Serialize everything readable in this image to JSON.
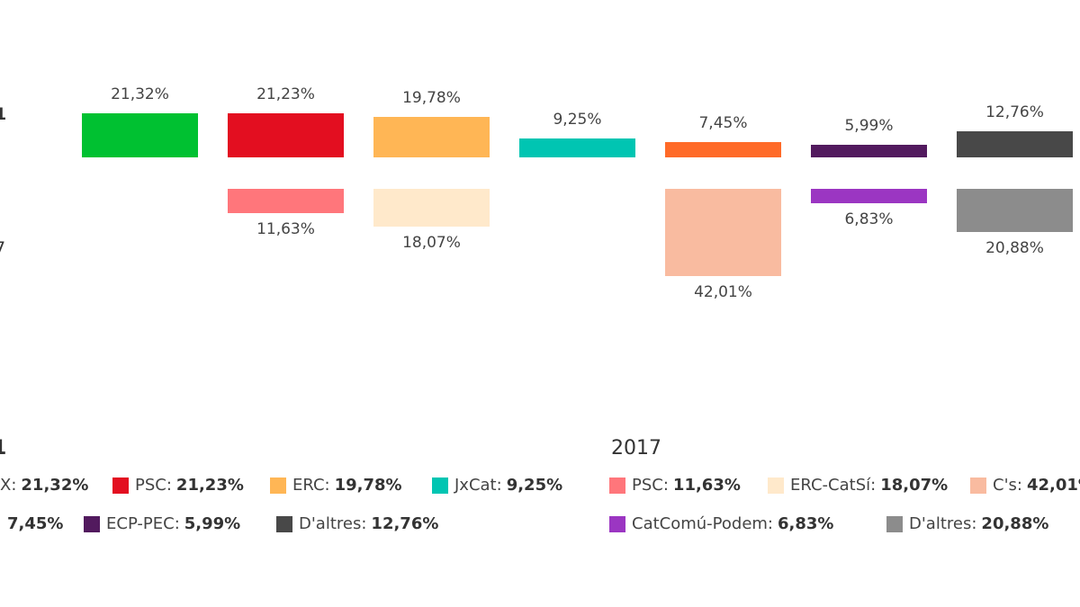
{
  "chart_data": {
    "type": "bar",
    "row_labels": [
      "1",
      "7"
    ],
    "series": [
      {
        "legend_title": "1",
        "bars": [
          {
            "label": "X",
            "value": 21.32,
            "text": "21,32%",
            "color": "#00c131"
          },
          {
            "label": "PSC",
            "value": 21.23,
            "text": "21,23%",
            "color": "#e30e20"
          },
          {
            "label": "ERC",
            "value": 19.78,
            "text": "19,78%",
            "color": "#ffb655"
          },
          {
            "label": "JxCat",
            "value": 9.25,
            "text": "9,25%",
            "color": "#00c5b2"
          },
          {
            "label": "",
            "value": 7.45,
            "text": "7,45%",
            "color": "#ff6a28"
          },
          {
            "label": "ECP-PEC",
            "value": 5.99,
            "text": "5,99%",
            "color": "#521a5e"
          },
          {
            "label": "D'altres",
            "value": 12.76,
            "text": "12,76%",
            "color": "#484848"
          }
        ]
      },
      {
        "legend_title": "2017",
        "bars": [
          null,
          {
            "label": "PSC",
            "value": 11.63,
            "text": "11,63%",
            "color": "#ff767b"
          },
          {
            "label": "ERC-CatSí",
            "value": 18.07,
            "text": "18,07%",
            "color": "#ffe9cb"
          },
          null,
          {
            "label": "C's",
            "value": 42.01,
            "text": "42,01%",
            "color": "#f9bba0"
          },
          {
            "label": "CatComú-Podem",
            "value": 6.83,
            "text": "6,83%",
            "color": "#9b36c2"
          },
          {
            "label": "D'altres",
            "value": 20.88,
            "text": "20,88%",
            "color": "#8c8c8c"
          }
        ]
      }
    ],
    "legend_rows": [
      [
        [
          0,
          1,
          2,
          3
        ],
        [
          4,
          5,
          6
        ]
      ],
      [
        [
          1,
          2,
          4
        ],
        [
          5,
          6
        ]
      ]
    ]
  }
}
